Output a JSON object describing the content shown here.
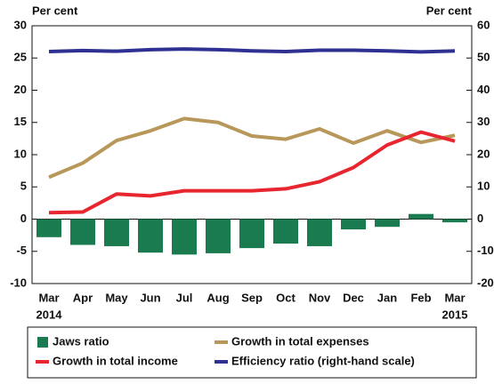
{
  "chart_data": {
    "type": "combo",
    "y_axis_label": "Per cent",
    "y2_axis_label": "Per cent",
    "categories": [
      "Mar",
      "Apr",
      "May",
      "Jun",
      "Jul",
      "Aug",
      "Sep",
      "Oct",
      "Nov",
      "Dec",
      "Jan",
      "Feb",
      "Mar"
    ],
    "x_year_labels": [
      "2014",
      null,
      null,
      null,
      null,
      null,
      null,
      null,
      null,
      null,
      null,
      null,
      "2015"
    ],
    "ylim": [
      -10,
      30
    ],
    "yticks": [
      -10,
      -5,
      0,
      5,
      10,
      15,
      20,
      25,
      30
    ],
    "y2lim": [
      -20,
      60
    ],
    "y2ticks": [
      -20,
      -10,
      0,
      10,
      20,
      30,
      40,
      50,
      60
    ],
    "series": [
      {
        "name": "Jaws ratio",
        "type": "bar",
        "color": "#1a7a50",
        "values": [
          -2.8,
          -4.0,
          -4.2,
          -5.2,
          -5.5,
          -5.3,
          -4.5,
          -3.8,
          -4.2,
          -1.6,
          -1.2,
          0.8,
          -0.5
        ]
      },
      {
        "name": "Growth in total expenses",
        "type": "line",
        "color": "#b8975a",
        "values": [
          6.5,
          8.7,
          12.2,
          13.7,
          15.6,
          15.0,
          12.9,
          12.4,
          14.0,
          11.8,
          13.7,
          11.9,
          13.0
        ]
      },
      {
        "name": "Growth in total income",
        "type": "line",
        "color": "#e8262f",
        "values": [
          1.0,
          1.1,
          3.9,
          3.6,
          4.4,
          4.4,
          4.4,
          4.7,
          5.8,
          8.0,
          11.5,
          13.5,
          12.1
        ]
      },
      {
        "name": "Efficiency ratio (right-hand scale)",
        "type": "line",
        "axis": "y2",
        "color": "#2e3192",
        "values": [
          52,
          52.3,
          52.1,
          52.6,
          52.8,
          52.6,
          52.2,
          52.0,
          52.4,
          52.4,
          52.2,
          51.9,
          52.2
        ]
      }
    ]
  }
}
